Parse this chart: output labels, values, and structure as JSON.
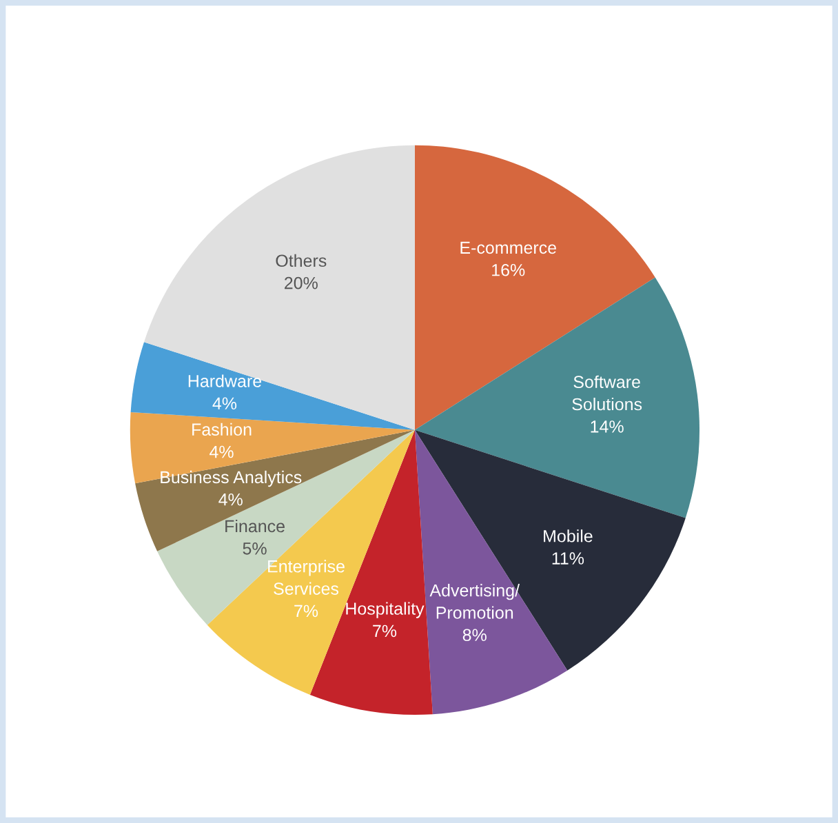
{
  "chart_data": {
    "type": "pie",
    "categories": [
      "E-commerce",
      "Software\nSolutions",
      "Mobile",
      "Advertising/\nPromotion",
      "Hospitality",
      "Enterprise\nServices",
      "Finance",
      "Business Analytics",
      "Fashion",
      "Hardware",
      "Others"
    ],
    "values": [
      16,
      14,
      11,
      8,
      7,
      7,
      5,
      4,
      4,
      4,
      20
    ],
    "value_labels": [
      "16%",
      "14%",
      "11%",
      "8%",
      "7%",
      "7%",
      "5%",
      "4%",
      "4%",
      "4%",
      "20%"
    ],
    "colors": [
      "#d6673e",
      "#4a8a91",
      "#272c3a",
      "#7c569c",
      "#c4232a",
      "#f4c94e",
      "#c8d8c4",
      "#8e774c",
      "#eaa54f",
      "#4a9fd8",
      "#e0e0e0"
    ]
  }
}
